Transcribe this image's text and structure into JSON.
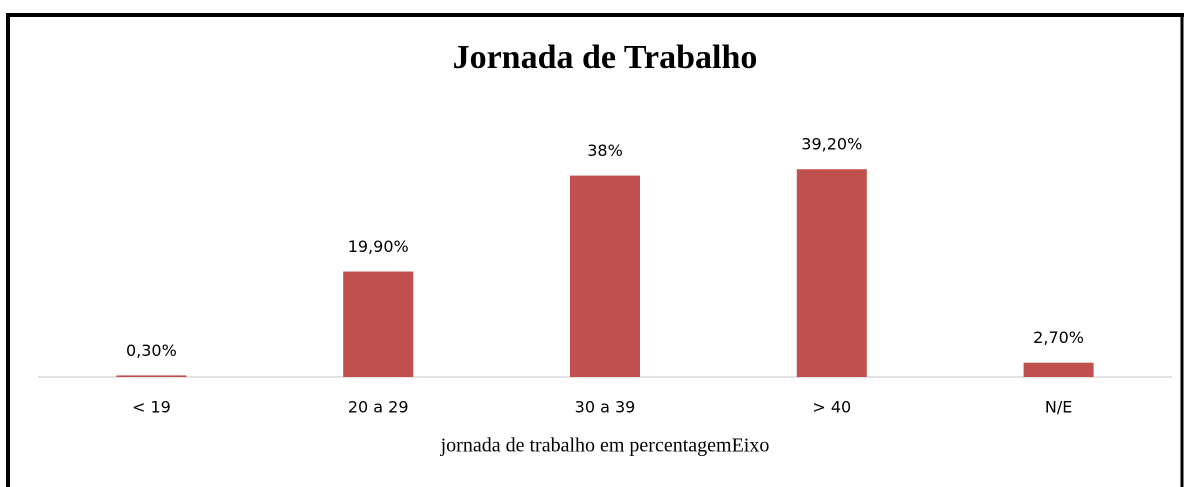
{
  "chart_data": {
    "type": "bar",
    "title": "Jornada de Trabalho",
    "x_label": "jornada de trabalho em percentagemEixo",
    "categories": [
      "< 19",
      "20 a 29",
      "30 a 39",
      "> 40",
      "N/E"
    ],
    "values": [
      0.3,
      19.9,
      38,
      39.2,
      2.7
    ],
    "value_labels": [
      "0,30%",
      "19,90%",
      "38%",
      "39,20%",
      "2,70%"
    ],
    "color": "#c0504d"
  }
}
